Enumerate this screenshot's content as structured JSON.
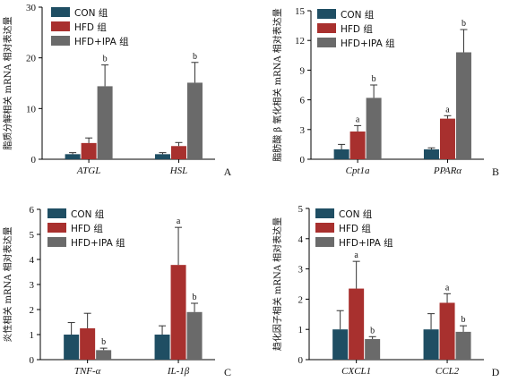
{
  "series_names": [
    "CON 组",
    "HFD 组",
    "HFD+IPA 组"
  ],
  "colors": {
    "CON 组": "#1f4e63",
    "HFD 组": "#a8302e",
    "HFD+IPA 组": "#6a6a6a"
  },
  "chart_data": [
    {
      "type": "bar",
      "panel_letter": "A",
      "ylabel": "脂质分解相关 mRNA 相对表达量",
      "ylim": [
        0,
        30
      ],
      "yticks": [
        0,
        10,
        20,
        30
      ],
      "legend_position": "top-left",
      "categories": [
        "ATGL",
        "HSL"
      ],
      "series": [
        {
          "name": "CON 组",
          "values": [
            1.0,
            1.0
          ],
          "errors": [
            0.3,
            0.3
          ],
          "sig": [
            "",
            ""
          ]
        },
        {
          "name": "HFD 组",
          "values": [
            3.2,
            2.6
          ],
          "errors": [
            1.0,
            0.7
          ],
          "sig": [
            "",
            ""
          ]
        },
        {
          "name": "HFD+IPA 组",
          "values": [
            14.4,
            15.1
          ],
          "errors": [
            4.2,
            4.0
          ],
          "sig": [
            "b",
            "b"
          ]
        }
      ]
    },
    {
      "type": "bar",
      "panel_letter": "B",
      "ylabel": "脂肪酸 β 氧化相关 mRNA 相对表达量",
      "ylim": [
        0,
        15
      ],
      "yticks": [
        0,
        3,
        6,
        9,
        12,
        15
      ],
      "legend_position": "top-left",
      "categories": [
        "Cpt1a",
        "PPARα"
      ],
      "series": [
        {
          "name": "CON 组",
          "values": [
            1.0,
            1.0
          ],
          "errors": [
            0.5,
            0.15
          ],
          "sig": [
            "",
            ""
          ]
        },
        {
          "name": "HFD 组",
          "values": [
            2.8,
            4.1
          ],
          "errors": [
            0.6,
            0.3
          ],
          "sig": [
            "a",
            "a"
          ]
        },
        {
          "name": "HFD+IPA 组",
          "values": [
            6.2,
            10.8
          ],
          "errors": [
            1.3,
            2.3
          ],
          "sig": [
            "b",
            "b"
          ]
        }
      ]
    },
    {
      "type": "bar",
      "panel_letter": "C",
      "ylabel": "炎性相关 mRNA 相对表达量",
      "ylim": [
        0,
        6
      ],
      "yticks": [
        0,
        1,
        2,
        3,
        4,
        5,
        6
      ],
      "legend_position": "top-left",
      "categories": [
        "TNF-α",
        "IL-1β"
      ],
      "series": [
        {
          "name": "CON 组",
          "values": [
            1.0,
            1.0
          ],
          "errors": [
            0.48,
            0.35
          ],
          "sig": [
            "",
            ""
          ]
        },
        {
          "name": "HFD 组",
          "values": [
            1.25,
            3.78
          ],
          "errors": [
            0.6,
            1.5
          ],
          "sig": [
            "",
            "a"
          ]
        },
        {
          "name": "HFD+IPA 组",
          "values": [
            0.38,
            1.9
          ],
          "errors": [
            0.08,
            0.35
          ],
          "sig": [
            "b",
            "b"
          ]
        }
      ]
    },
    {
      "type": "bar",
      "panel_letter": "D",
      "ylabel": "趋化因子相关 mRNA 相对表达量",
      "ylim": [
        0,
        5
      ],
      "yticks": [
        0,
        1,
        2,
        3,
        4,
        5
      ],
      "legend_position": "top-left",
      "categories": [
        "CXCL1",
        "CCL2"
      ],
      "series": [
        {
          "name": "CON 组",
          "values": [
            1.0,
            1.0
          ],
          "errors": [
            0.62,
            0.52
          ],
          "sig": [
            "",
            ""
          ]
        },
        {
          "name": "HFD 组",
          "values": [
            2.35,
            1.88
          ],
          "errors": [
            0.9,
            0.3
          ],
          "sig": [
            "a",
            "a"
          ]
        },
        {
          "name": "HFD+IPA 组",
          "values": [
            0.68,
            0.92
          ],
          "errors": [
            0.08,
            0.2
          ],
          "sig": [
            "b",
            "b"
          ]
        }
      ]
    }
  ]
}
